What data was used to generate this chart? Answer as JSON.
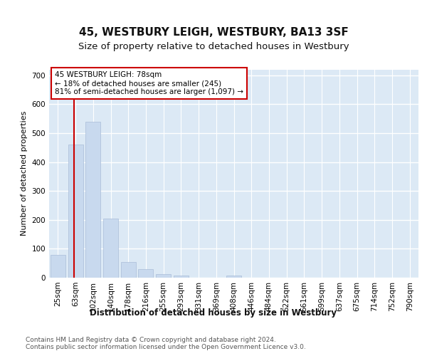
{
  "title": "45, WESTBURY LEIGH, WESTBURY, BA13 3SF",
  "subtitle": "Size of property relative to detached houses in Westbury",
  "xlabel": "Distribution of detached houses by size in Westbury",
  "ylabel": "Number of detached properties",
  "bar_color": "#c8d9ee",
  "bar_edge_color": "#aabdd8",
  "categories": [
    "25sqm",
    "63sqm",
    "102sqm",
    "140sqm",
    "178sqm",
    "216sqm",
    "255sqm",
    "293sqm",
    "331sqm",
    "369sqm",
    "408sqm",
    "446sqm",
    "484sqm",
    "522sqm",
    "561sqm",
    "599sqm",
    "637sqm",
    "675sqm",
    "714sqm",
    "752sqm",
    "790sqm"
  ],
  "values": [
    80,
    460,
    540,
    205,
    55,
    30,
    12,
    8,
    0,
    0,
    8,
    0,
    0,
    0,
    0,
    0,
    0,
    0,
    0,
    0,
    0
  ],
  "ylim": [
    0,
    720
  ],
  "yticks": [
    0,
    100,
    200,
    300,
    400,
    500,
    600,
    700
  ],
  "annotation_box_text": "45 WESTBURY LEIGH: 78sqm\n← 18% of detached houses are smaller (245)\n81% of semi-detached houses are larger (1,097) →",
  "annotation_box_color": "#ffffff",
  "annotation_box_edge_color": "#cc0000",
  "vertical_line_color": "#cc0000",
  "background_color": "#ffffff",
  "plot_background_color": "#dce9f5",
  "footer_text": "Contains HM Land Registry data © Crown copyright and database right 2024.\nContains public sector information licensed under the Open Government Licence v3.0.",
  "grid_color": "#ffffff",
  "title_fontsize": 11,
  "subtitle_fontsize": 9.5,
  "xlabel_fontsize": 8.5,
  "ylabel_fontsize": 8,
  "tick_fontsize": 7.5,
  "annotation_fontsize": 7.5,
  "footer_fontsize": 6.5
}
